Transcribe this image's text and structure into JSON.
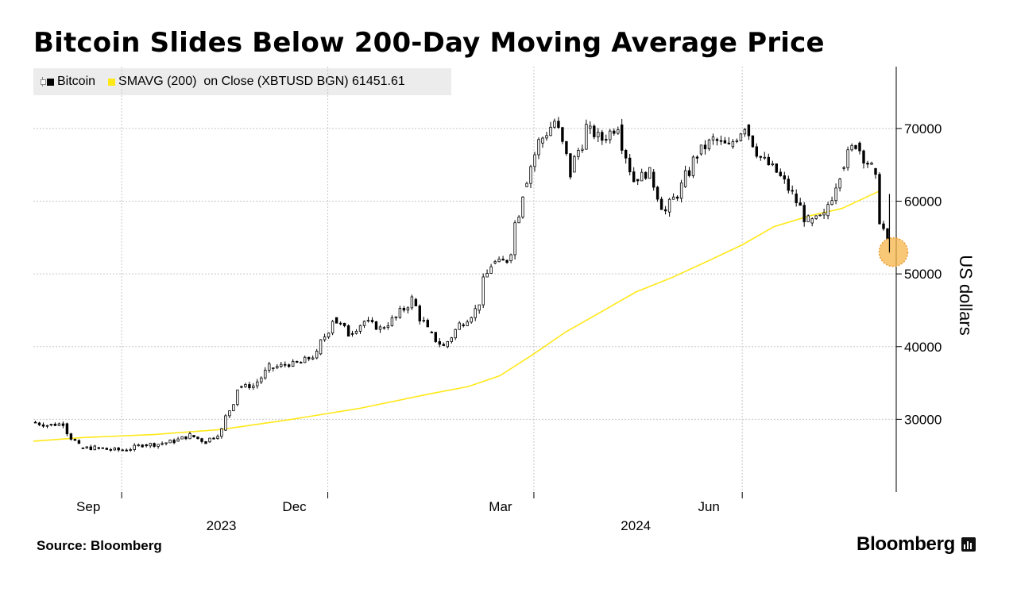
{
  "title": "Bitcoin Slides Below 200-Day Moving Average Price",
  "legend": {
    "series1": "Bitcoin",
    "series2": "SMAVG (200)  on Close (XBTUSD BGN) 61451.61",
    "colors": {
      "series1": "#000000",
      "series2": "#ffe818"
    }
  },
  "source": "Source: Bloomberg",
  "logo": "Bloomberg",
  "chart_data": {
    "type": "line",
    "title": "Bitcoin Slides Below 200-Day Moving Average Price",
    "xlabel": "",
    "ylabel": "US dollars",
    "ylim": [
      20000,
      78500
    ],
    "xlim": [
      "2023-07-24",
      "2024-08-08"
    ],
    "y_ticks": [
      30000,
      40000,
      50000,
      60000,
      70000
    ],
    "y_tick_labels": [
      "30000",
      "40000",
      "50000",
      "60000",
      "70000"
    ],
    "x_month_ticks": [
      {
        "date": "2023-09-01",
        "label": "Sep"
      },
      {
        "date": "2023-12-01",
        "label": "Dec"
      },
      {
        "date": "2024-03-01",
        "label": "Mar"
      },
      {
        "date": "2024-06-01",
        "label": "Jun"
      }
    ],
    "x_year_labels": [
      {
        "date": "2023-10-15",
        "label": "2023"
      },
      {
        "date": "2024-04-15",
        "label": "2024"
      }
    ],
    "grid": true,
    "legend_position": "top-left",
    "highlight": {
      "date": "2024-08-05",
      "value": 53000,
      "color": "#f7b54a"
    },
    "series": [
      {
        "name": "Bitcoin",
        "style": "candlestick",
        "color": "#000000",
        "dates": [
          "2023-07-24",
          "2023-07-31",
          "2023-08-07",
          "2023-08-14",
          "2023-08-21",
          "2023-08-28",
          "2023-09-04",
          "2023-09-11",
          "2023-09-18",
          "2023-09-25",
          "2023-10-02",
          "2023-10-09",
          "2023-10-16",
          "2023-10-23",
          "2023-10-30",
          "2023-11-06",
          "2023-11-13",
          "2023-11-20",
          "2023-11-27",
          "2023-12-04",
          "2023-12-11",
          "2023-12-18",
          "2023-12-25",
          "2024-01-01",
          "2024-01-08",
          "2024-01-15",
          "2024-01-22",
          "2024-01-29",
          "2024-02-05",
          "2024-02-12",
          "2024-02-19",
          "2024-02-26",
          "2024-03-04",
          "2024-03-11",
          "2024-03-18",
          "2024-03-25",
          "2024-04-01",
          "2024-04-08",
          "2024-04-15",
          "2024-04-22",
          "2024-04-29",
          "2024-05-06",
          "2024-05-13",
          "2024-05-20",
          "2024-05-27",
          "2024-06-03",
          "2024-06-10",
          "2024-06-17",
          "2024-06-24",
          "2024-07-01",
          "2024-07-08",
          "2024-07-15",
          "2024-07-22",
          "2024-07-29",
          "2024-08-05"
        ],
        "values": [
          29600,
          29200,
          29400,
          26000,
          26100,
          25800,
          25800,
          26500,
          26600,
          27000,
          27800,
          26900,
          28500,
          34500,
          34600,
          37000,
          37500,
          37800,
          39000,
          44000,
          41800,
          43500,
          42500,
          44000,
          46500,
          42000,
          40000,
          43000,
          45000,
          51500,
          51800,
          62000,
          68000,
          71000,
          64000,
          70000,
          68500,
          70500,
          63000,
          64000,
          58500,
          62000,
          66500,
          68500,
          67500,
          70500,
          66000,
          64000,
          61000,
          57000,
          58000,
          64500,
          68000,
          64500,
          53000
        ]
      },
      {
        "name": "SMAVG (200)  on Close (XBTUSD BGN) 61451.61",
        "style": "line",
        "color": "#ffe818",
        "dates": [
          "2023-07-24",
          "2023-08-15",
          "2023-09-15",
          "2023-10-15",
          "2023-11-15",
          "2023-12-15",
          "2024-01-15",
          "2024-02-01",
          "2024-02-15",
          "2024-03-01",
          "2024-03-15",
          "2024-04-01",
          "2024-04-15",
          "2024-05-01",
          "2024-05-15",
          "2024-06-01",
          "2024-06-15",
          "2024-07-01",
          "2024-07-15",
          "2024-08-01"
        ],
        "values": [
          27000,
          27500,
          27900,
          28600,
          30000,
          31500,
          33500,
          34500,
          36000,
          39000,
          42000,
          45000,
          47500,
          49500,
          51500,
          54000,
          56500,
          58000,
          59000,
          61451.61
        ]
      }
    ]
  }
}
